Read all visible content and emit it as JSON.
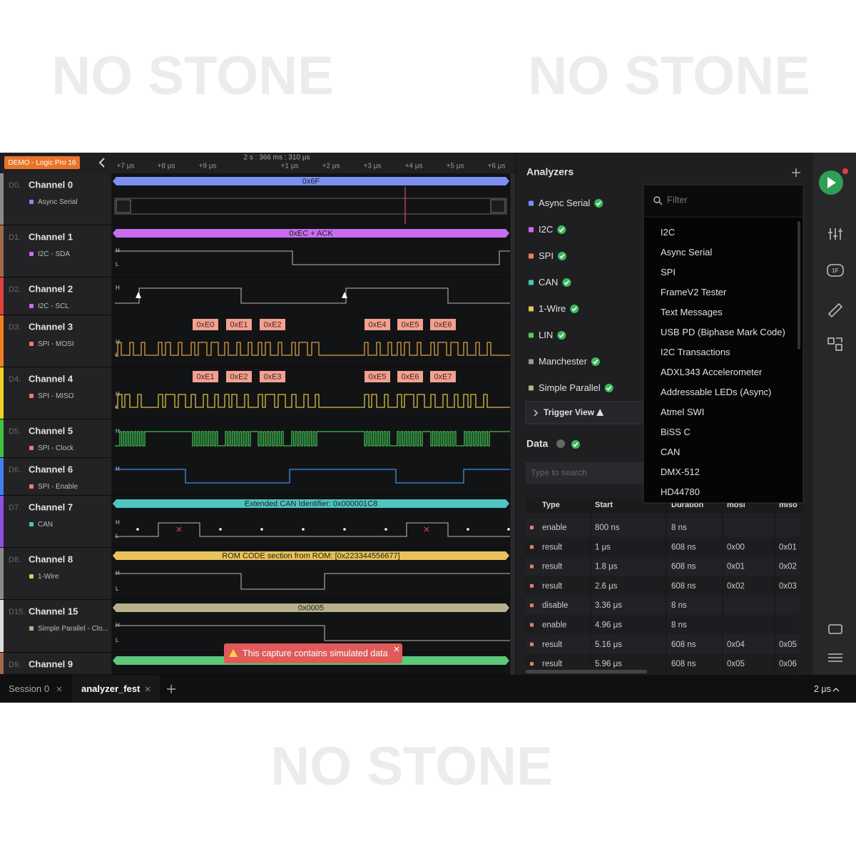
{
  "watermarks": [
    "NO STONE",
    "NO STONE",
    "NO STONE"
  ],
  "toolbar": {
    "badge": "DEMO - Logic Pro 16",
    "time_origin": "2 s : 366 ms : 310 μs",
    "time_ticks": [
      "+7 μs",
      "+8 μs",
      "+9 μs",
      "+1 μs",
      "+2 μs",
      "+3 μs",
      "+4 μs",
      "+5 μs",
      "+6 μs"
    ]
  },
  "channels": [
    {
      "index": "D0.",
      "name": "Channel 0",
      "analyzer": "Async Serial",
      "color": "#8a8a8a",
      "analyzer_color": "#7b8ff0",
      "bubble": "0x6F"
    },
    {
      "index": "D1.",
      "name": "Channel 1",
      "analyzer": "I2C - SDA",
      "color": "#a06a4a",
      "analyzer_color": "#c86cf0",
      "bubble": "0xEC + ACK"
    },
    {
      "index": "D2.",
      "name": "Channel 2",
      "analyzer": "I2C - SCL",
      "color": "#e04040",
      "analyzer_color": "#c86cf0",
      "bubble": null
    },
    {
      "index": "D3.",
      "name": "Channel 3",
      "analyzer": "SPI - MOSI",
      "color": "#f08020",
      "analyzer_color": "#f07b6b",
      "bubble": null
    },
    {
      "index": "D4.",
      "name": "Channel 4",
      "analyzer": "SPI - MISO",
      "color": "#f0d020",
      "analyzer_color": "#f07b6b",
      "bubble": null
    },
    {
      "index": "D5.",
      "name": "Channel 5",
      "analyzer": "SPI - Clock",
      "color": "#40c040",
      "analyzer_color": "#f07b6b",
      "bubble": null
    },
    {
      "index": "D6.",
      "name": "Channel 6",
      "analyzer": "SPI - Enable",
      "color": "#4080f0",
      "analyzer_color": "#f07b6b",
      "bubble": null
    },
    {
      "index": "D7.",
      "name": "Channel 7",
      "analyzer": "CAN",
      "color": "#9050e0",
      "analyzer_color": "#4fc4c0",
      "bubble": "Extended CAN Identifier: 0x000001C8"
    },
    {
      "index": "D8.",
      "name": "Channel 8",
      "analyzer": "1-Wire",
      "color": "#8a8a8a",
      "analyzer_color": "#e8c25a",
      "bubble": "ROM CODE section from ROM: [0x223344556677]"
    },
    {
      "index": "D15.",
      "name": "Channel 15",
      "analyzer": "Simple Parallel - Clo...",
      "color": "#dddddd",
      "analyzer_color": "#b8b08a",
      "bubble": "0x0005"
    },
    {
      "index": "D9.",
      "name": "Channel 9",
      "analyzer": null,
      "color": "#a06a4a",
      "analyzer_color": "#5cc87a",
      "bubble": null
    }
  ],
  "level_labels": [
    "H",
    "L"
  ],
  "spi_bytes": {
    "mosi": [
      "0xE0",
      "0xE1",
      "0xE2",
      "0xE4",
      "0xE5",
      "0xE6"
    ],
    "miso": [
      "0xE1",
      "0xE2",
      "0xE3",
      "0xE5",
      "0xE6",
      "0xE7"
    ]
  },
  "warning": "This capture contains simulated data",
  "analyzers": {
    "title": "Analyzers",
    "items": [
      {
        "name": "Async Serial",
        "color": "#7b8ff0"
      },
      {
        "name": "I2C",
        "color": "#c86cf0"
      },
      {
        "name": "SPI",
        "color": "#f07b6b"
      },
      {
        "name": "CAN",
        "color": "#4fc4c0"
      },
      {
        "name": "1-Wire",
        "color": "#e8c25a"
      },
      {
        "name": "LIN",
        "color": "#5cc85c"
      },
      {
        "name": "Manchester",
        "color": "#9a9a9a"
      },
      {
        "name": "Simple Parallel",
        "color": "#b8b08a"
      }
    ],
    "trigger_view": "Trigger View"
  },
  "data_panel": {
    "title": "Data",
    "search_placeholder": "Type to search",
    "columns": [
      "Type",
      "Start",
      "Duration",
      "mosi",
      "miso"
    ],
    "rows": [
      [
        "enable",
        "800 ns",
        "8 ns",
        null,
        null
      ],
      [
        "result",
        "1 μs",
        "608 ns",
        "0x00",
        "0x01"
      ],
      [
        "result",
        "1.8 μs",
        "608 ns",
        "0x01",
        "0x02"
      ],
      [
        "result",
        "2.6 μs",
        "608 ns",
        "0x02",
        "0x03"
      ],
      [
        "disable",
        "3.36 μs",
        "8 ns",
        null,
        null
      ],
      [
        "enable",
        "4.96 μs",
        "8 ns",
        null,
        null
      ],
      [
        "result",
        "5.16 μs",
        "608 ns",
        "0x04",
        "0x05"
      ],
      [
        "result",
        "5.96 μs",
        "608 ns",
        "0x05",
        "0x06"
      ]
    ]
  },
  "filter": {
    "placeholder": "Filter",
    "items": [
      "I2C",
      "Async Serial",
      "SPI",
      "FrameV2 Tester",
      "Text Messages",
      "USB PD (Biphase Mark Code)",
      "I2C Transactions",
      "ADXL343 Accelerometer",
      "Addressable LEDs (Async)",
      "Atmel SWI",
      "BiSS C",
      "CAN",
      "DMX-512",
      "HD44780"
    ]
  },
  "tabs": {
    "sessions": [
      "Session 0",
      "analyzer_fest"
    ],
    "zoom": "2 μs"
  }
}
